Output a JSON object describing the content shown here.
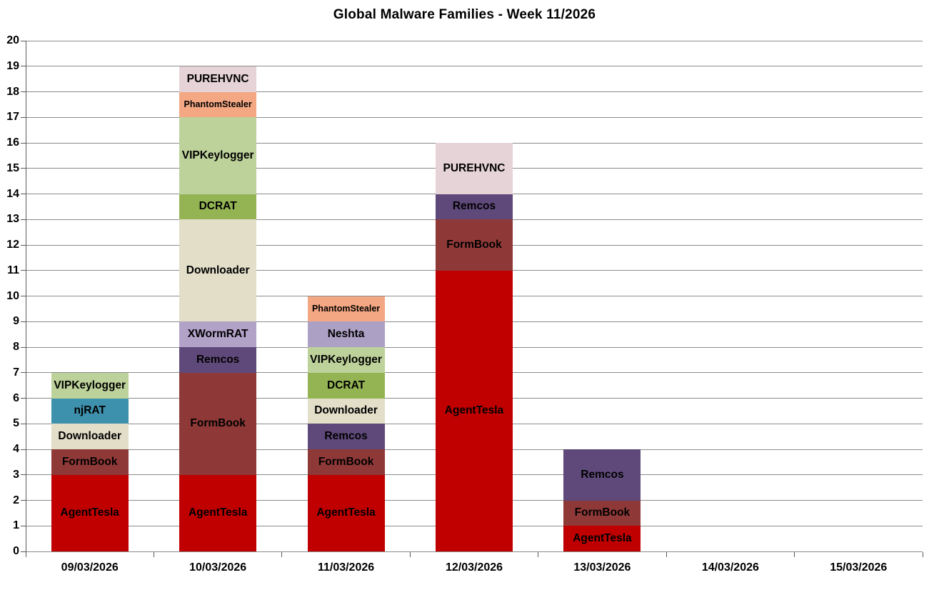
{
  "chart_data": {
    "type": "bar",
    "stacked": true,
    "title": "Global Malware Families - Week 11/2026",
    "xlabel": "",
    "ylabel": "",
    "ylim": [
      0,
      20
    ],
    "ytick_step": 1,
    "grid": true,
    "legend": "none",
    "categories": [
      "09/03/2026",
      "10/03/2026",
      "11/03/2026",
      "12/03/2026",
      "13/03/2026",
      "14/03/2026",
      "15/03/2026"
    ],
    "families": [
      {
        "name": "AgentTesla",
        "color": "#C00000"
      },
      {
        "name": "FormBook",
        "color": "#8E3937"
      },
      {
        "name": "Downloader",
        "color": "#E2DEC8"
      },
      {
        "name": "njRAT",
        "color": "#3D91AC"
      },
      {
        "name": "VIPKeylogger",
        "color": "#BDD19A"
      },
      {
        "name": "DCRAT",
        "color": "#94B454"
      },
      {
        "name": "Remcos",
        "color": "#5F497A"
      },
      {
        "name": "XWormRAT",
        "color": "#B2A2C7"
      },
      {
        "name": "Neshta",
        "color": "#ACA0C4"
      },
      {
        "name": "PhantomStealer",
        "color": "#F4A783",
        "label_size": 12.5
      },
      {
        "name": "PUREHVNC",
        "color": "#E6D3D7"
      }
    ],
    "bars": [
      {
        "category": "09/03/2026",
        "total": 7,
        "segments": [
          {
            "name": "AgentTesla",
            "value": 3
          },
          {
            "name": "FormBook",
            "value": 1
          },
          {
            "name": "Downloader",
            "value": 1
          },
          {
            "name": "njRAT",
            "value": 1
          },
          {
            "name": "VIPKeylogger",
            "value": 1
          }
        ]
      },
      {
        "category": "10/03/2026",
        "total": 19,
        "segments": [
          {
            "name": "AgentTesla",
            "value": 3
          },
          {
            "name": "FormBook",
            "value": 4
          },
          {
            "name": "Remcos",
            "value": 1
          },
          {
            "name": "XWormRAT",
            "value": 1
          },
          {
            "name": "Downloader",
            "value": 4
          },
          {
            "name": "DCRAT",
            "value": 1
          },
          {
            "name": "VIPKeylogger",
            "value": 3
          },
          {
            "name": "PhantomStealer",
            "value": 1
          },
          {
            "name": "PUREHVNC",
            "value": 1
          }
        ]
      },
      {
        "category": "11/03/2026",
        "total": 10,
        "segments": [
          {
            "name": "AgentTesla",
            "value": 3
          },
          {
            "name": "FormBook",
            "value": 1
          },
          {
            "name": "Remcos",
            "value": 1
          },
          {
            "name": "Downloader",
            "value": 1
          },
          {
            "name": "DCRAT",
            "value": 1
          },
          {
            "name": "VIPKeylogger",
            "value": 1
          },
          {
            "name": "Neshta",
            "value": 1
          },
          {
            "name": "PhantomStealer",
            "value": 1
          }
        ]
      },
      {
        "category": "12/03/2026",
        "total": 16,
        "segments": [
          {
            "name": "AgentTesla",
            "value": 11
          },
          {
            "name": "FormBook",
            "value": 2
          },
          {
            "name": "Remcos",
            "value": 1
          },
          {
            "name": "PUREHVNC",
            "value": 2
          }
        ]
      },
      {
        "category": "13/03/2026",
        "total": 4,
        "segments": [
          {
            "name": "AgentTesla",
            "value": 1
          },
          {
            "name": "FormBook",
            "value": 1
          },
          {
            "name": "Remcos",
            "value": 2
          }
        ]
      },
      {
        "category": "14/03/2026",
        "total": 0,
        "segments": []
      },
      {
        "category": "15/03/2026",
        "total": 0,
        "segments": []
      }
    ],
    "style": {
      "gridline_color": "#8C8C8C",
      "axis_color": "#595959",
      "text_color": "#000000",
      "background": "#FFFFFF"
    }
  }
}
